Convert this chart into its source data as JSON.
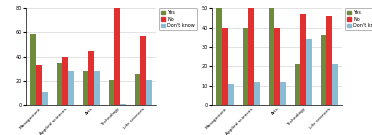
{
  "chart1": {
    "categories": [
      "Management",
      "Applied sciences",
      "Arts",
      "Technology",
      "Life sciences"
    ],
    "yes": [
      59,
      35,
      28,
      21,
      26
    ],
    "no": [
      33,
      40,
      45,
      80,
      57
    ],
    "dont": [
      11,
      28,
      28,
      1,
      21
    ],
    "ylim": [
      0,
      80
    ],
    "yticks": [
      0,
      20,
      40,
      60,
      80
    ]
  },
  "chart2": {
    "categories": [
      "Management",
      "Applied sciences",
      "Arts",
      "Technology",
      "Life sciences"
    ],
    "yes": [
      51,
      40,
      51,
      21,
      36
    ],
    "no": [
      40,
      50,
      40,
      47,
      46
    ],
    "dont": [
      11,
      12,
      12,
      34,
      21
    ],
    "ylim": [
      0,
      50
    ],
    "yticks": [
      0,
      10,
      20,
      30,
      40,
      50
    ]
  },
  "colors": {
    "yes": "#6d8b3a",
    "no": "#e03030",
    "dont": "#8bbcd4"
  },
  "legend_labels": [
    "Yes",
    "No",
    "Don't know"
  ],
  "bar_width": 0.22
}
